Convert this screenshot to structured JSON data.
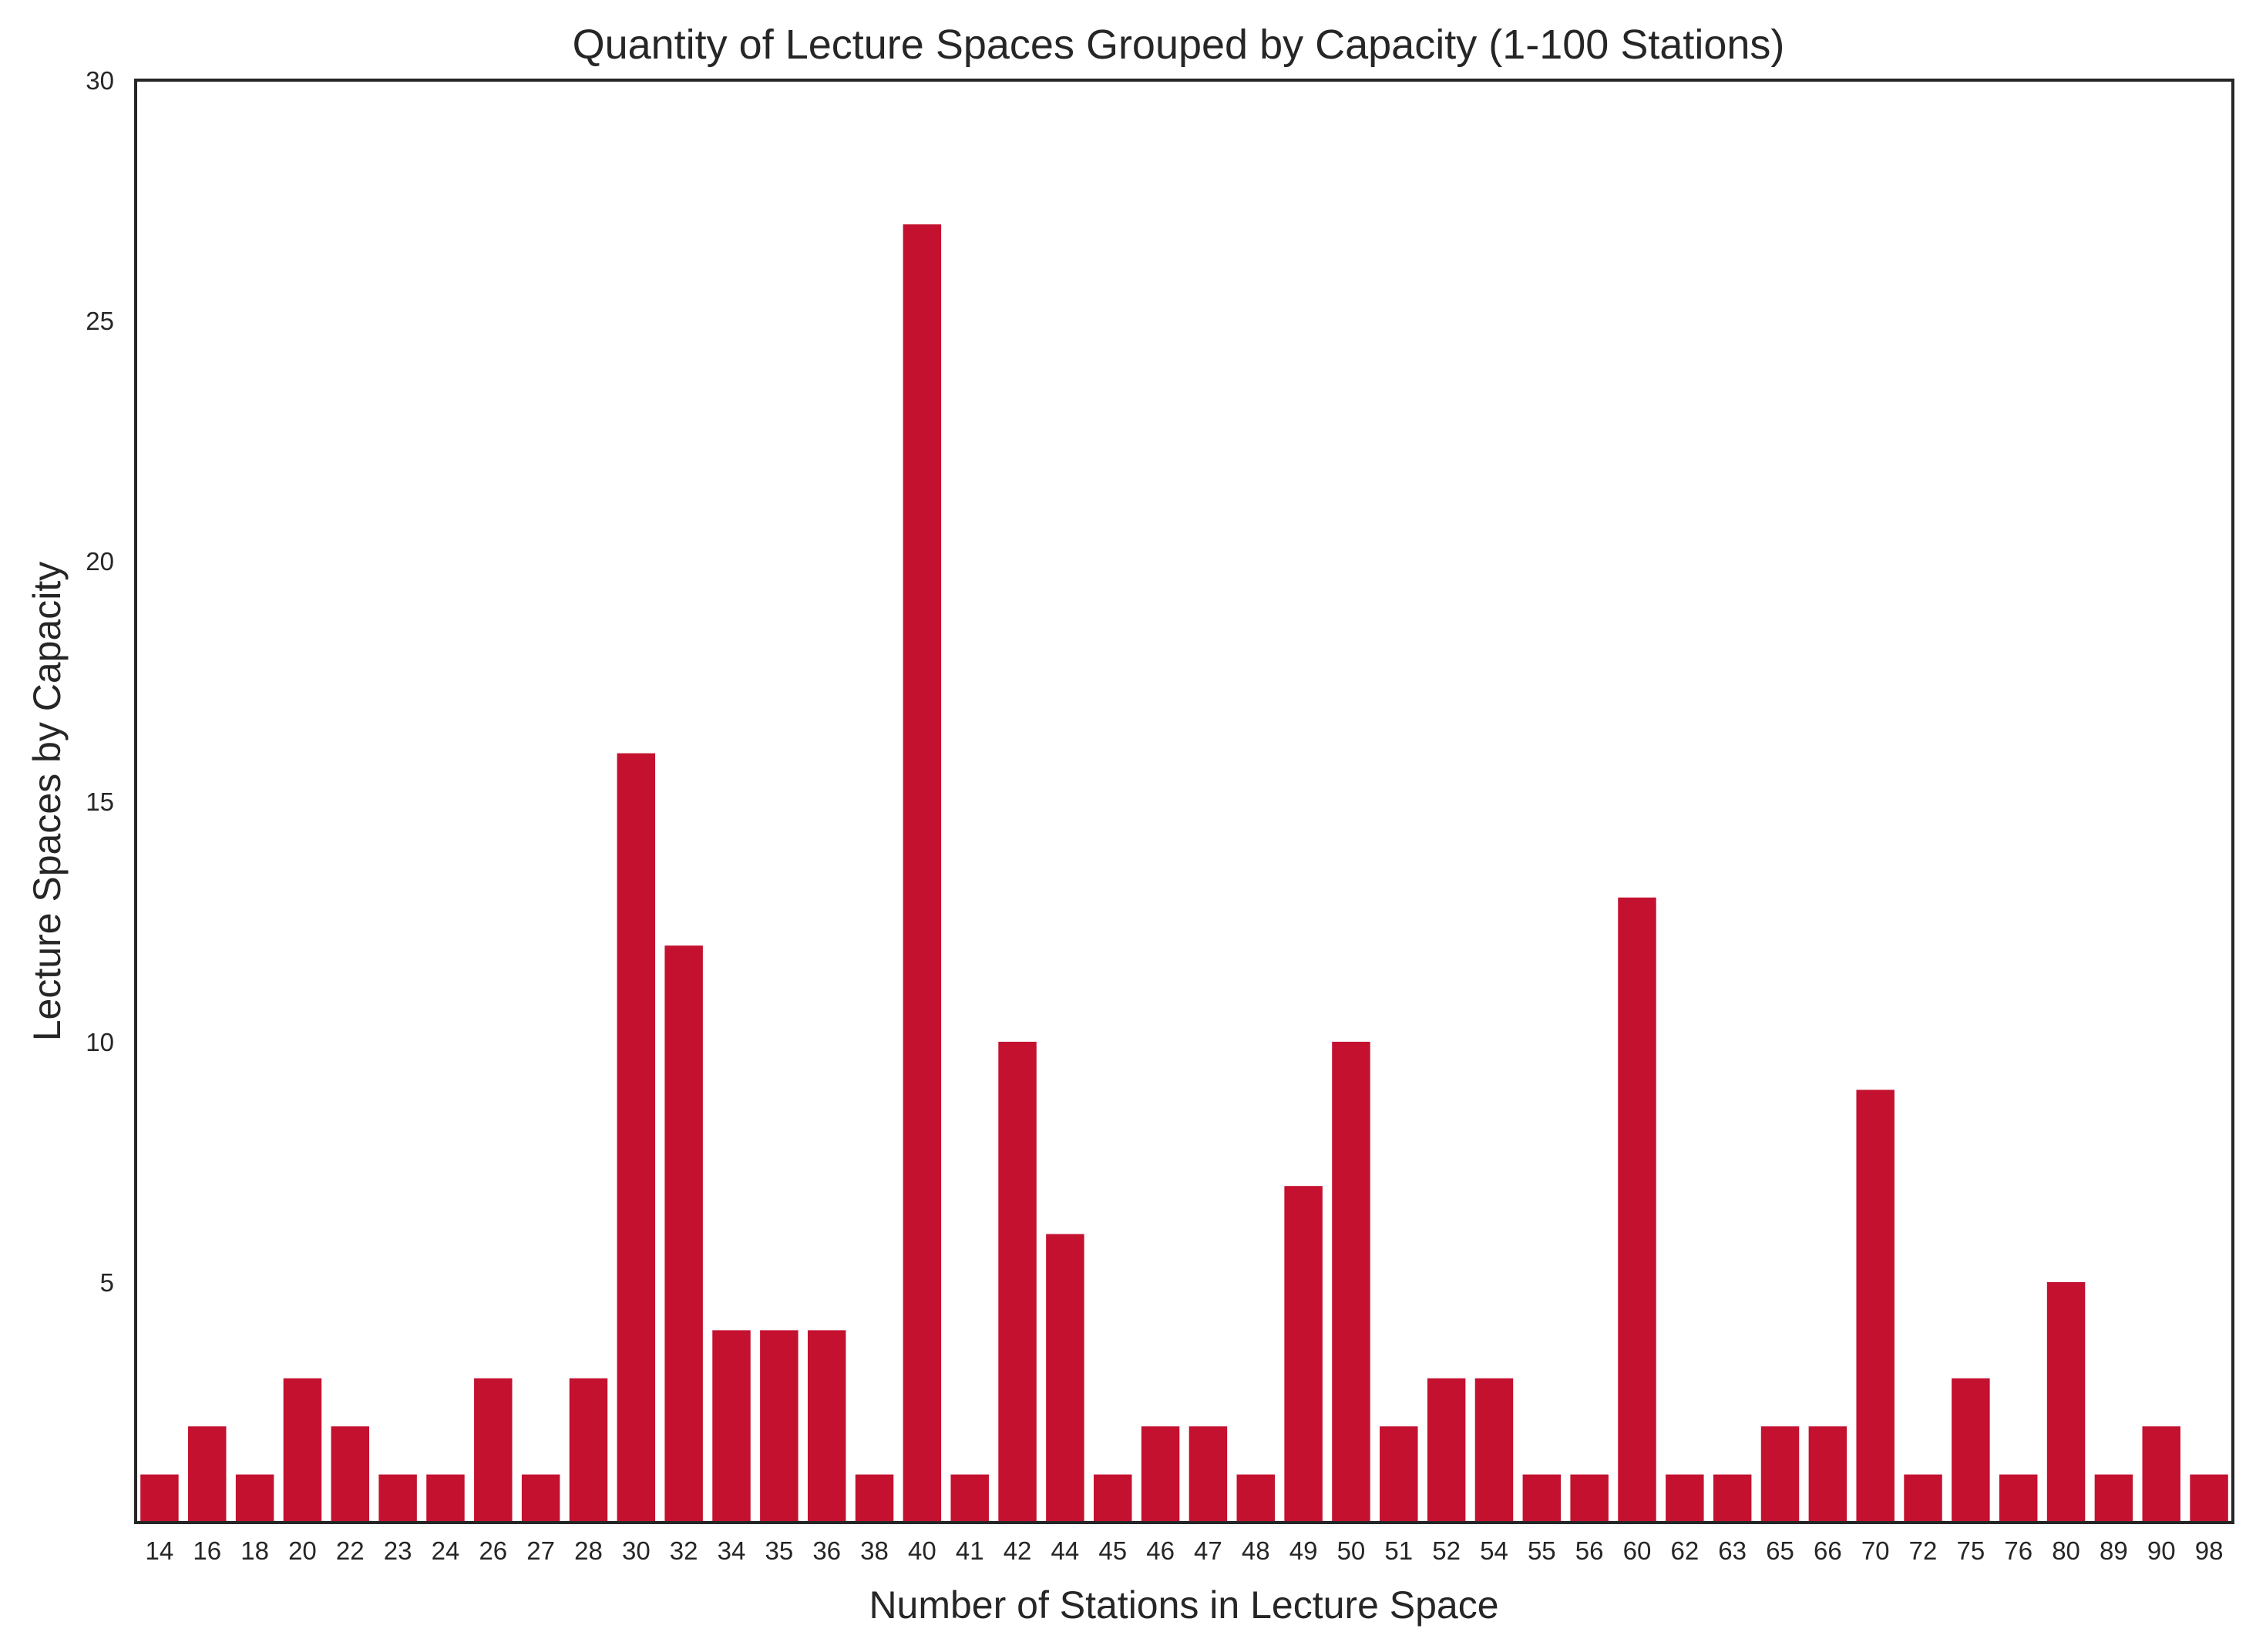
{
  "chart_data": {
    "type": "bar",
    "title": "Quantity of Lecture Spaces Grouped by Capacity (1-100 Stations)",
    "xlabel": "Number of Stations in Lecture Space",
    "ylabel": "Lecture Spaces by Capacity",
    "categories": [
      "14",
      "16",
      "18",
      "20",
      "22",
      "23",
      "24",
      "26",
      "27",
      "28",
      "30",
      "32",
      "34",
      "35",
      "36",
      "38",
      "40",
      "41",
      "42",
      "44",
      "45",
      "46",
      "47",
      "48",
      "49",
      "50",
      "51",
      "52",
      "54",
      "55",
      "56",
      "60",
      "62",
      "63",
      "65",
      "66",
      "70",
      "72",
      "75",
      "76",
      "80",
      "89",
      "90",
      "98"
    ],
    "values": [
      1,
      2,
      1,
      3,
      2,
      1,
      1,
      3,
      1,
      3,
      16,
      12,
      4,
      4,
      4,
      1,
      27,
      1,
      10,
      6,
      1,
      2,
      2,
      1,
      7,
      10,
      2,
      3,
      3,
      1,
      1,
      13,
      1,
      1,
      2,
      2,
      9,
      1,
      3,
      1,
      5,
      1,
      2,
      1
    ],
    "ylim": [
      0,
      30
    ],
    "yticks": [
      5,
      10,
      15,
      20,
      25,
      30
    ],
    "bar_color": "#c41130",
    "grid": false,
    "legend": "none"
  }
}
